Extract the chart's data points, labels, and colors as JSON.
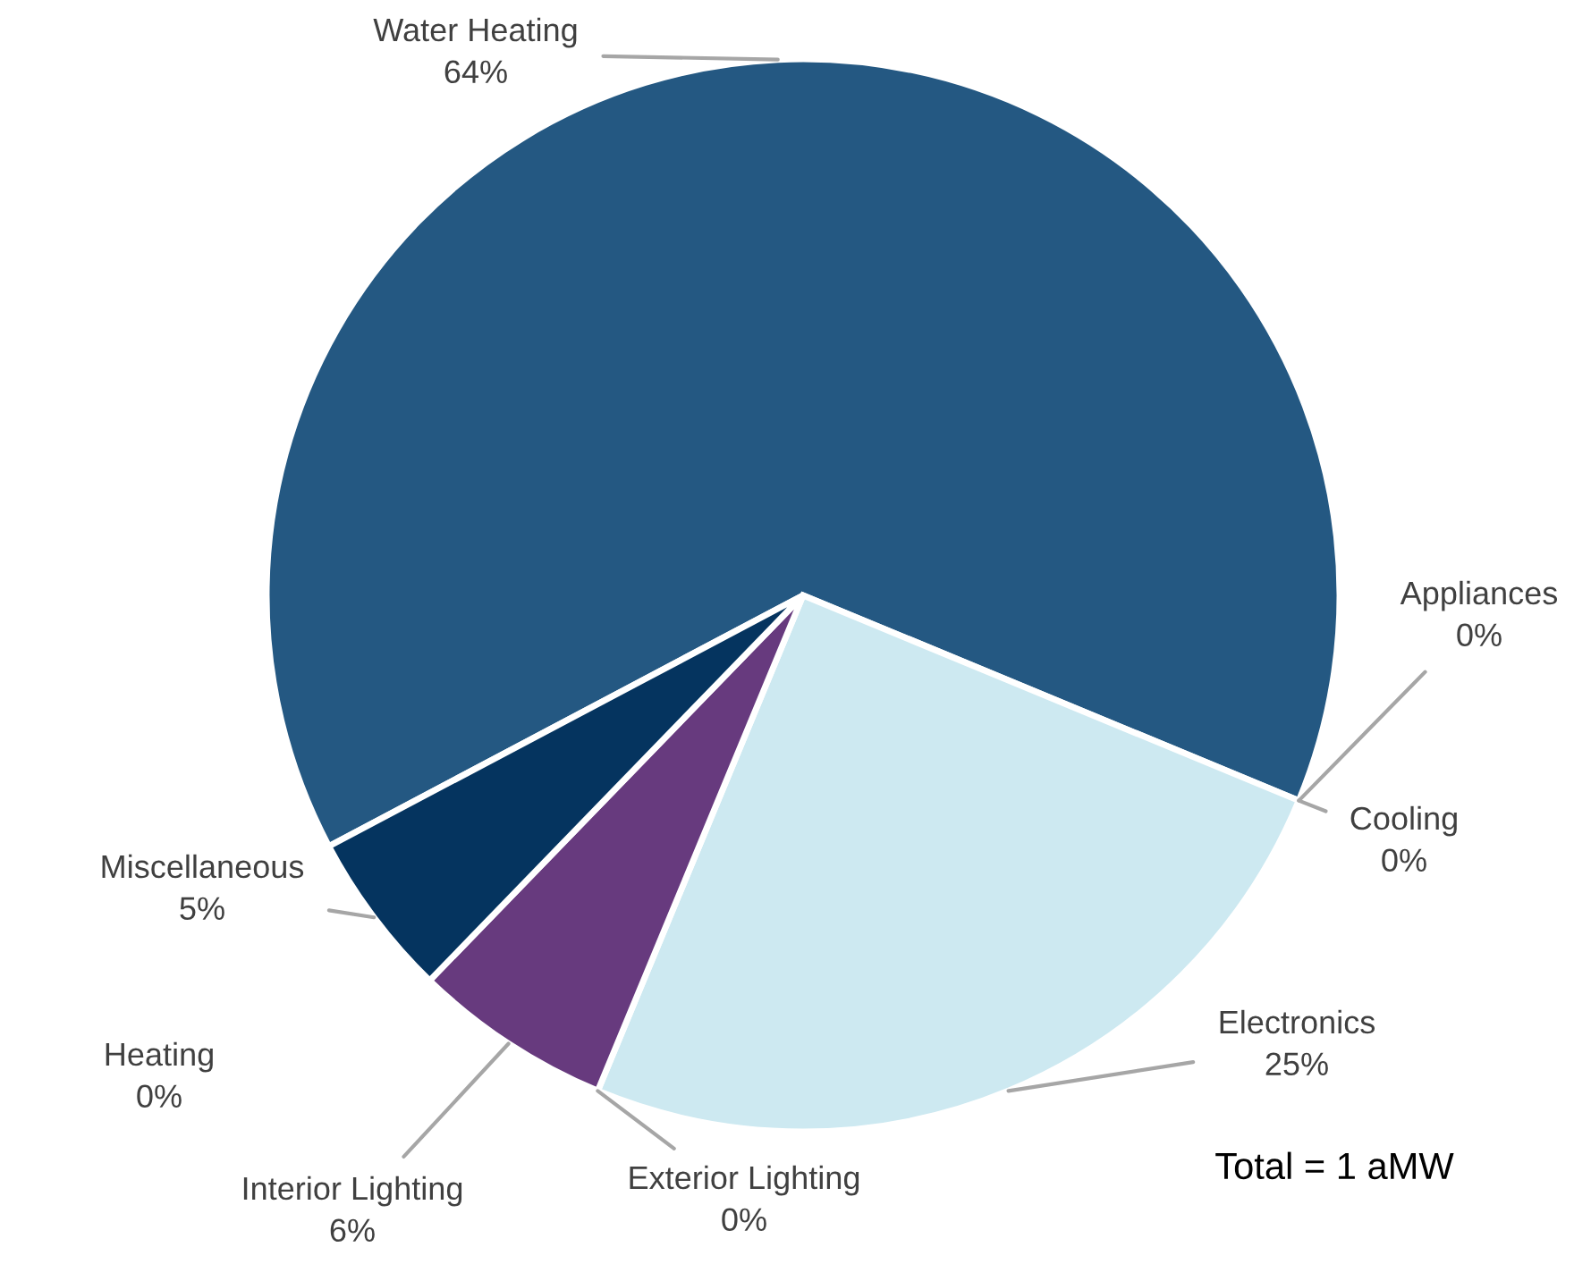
{
  "chart_data": {
    "type": "pie",
    "categories": [
      "Water Heating",
      "Appliances",
      "Cooling",
      "Electronics",
      "Exterior Lighting",
      "Interior Lighting",
      "Heating",
      "Miscellaneous"
    ],
    "values": [
      64,
      0,
      0,
      25,
      0,
      6,
      0,
      5
    ],
    "value_labels": [
      "64%",
      "0%",
      "0%",
      "25%",
      "0%",
      "6%",
      "0%",
      "5%"
    ],
    "colors": [
      "#245882",
      "#8fb4d9",
      "#a5a5a5",
      "#cde9f1",
      "#f4b183",
      "#673a7e",
      "#7f7f7f",
      "#05345f"
    ],
    "annotations": [
      "Total = 1 aMW"
    ]
  }
}
